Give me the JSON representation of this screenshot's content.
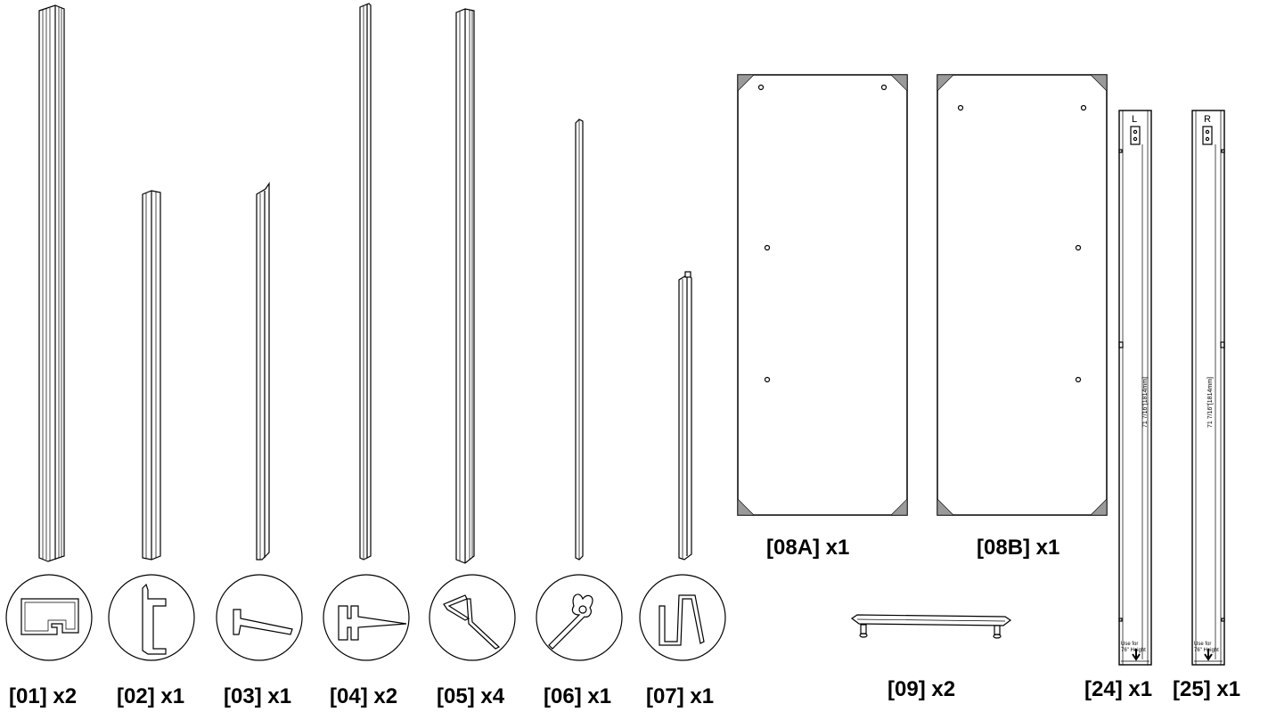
{
  "parts": [
    {
      "id": "01",
      "label": "[01] x2",
      "icon": "rectangular-profile-icon"
    },
    {
      "id": "02",
      "label": "[02] x1",
      "icon": "c-channel-profile-icon"
    },
    {
      "id": "03",
      "label": "[03] x1",
      "icon": "angled-seal-profile-icon"
    },
    {
      "id": "04",
      "label": "[04] x2",
      "icon": "h-seal-profile-icon"
    },
    {
      "id": "05",
      "label": "[05] x4",
      "icon": "z-seal-profile-icon"
    },
    {
      "id": "06",
      "label": "[06] x1",
      "icon": "clip-seal-profile-icon"
    },
    {
      "id": "07",
      "label": "[07] x1",
      "icon": "hook-profile-icon"
    }
  ],
  "panels": [
    {
      "id": "08A",
      "label": "[08A] x1"
    },
    {
      "id": "08B",
      "label": "[08B] x1"
    }
  ],
  "handle": {
    "id": "09",
    "label": "[09] x2"
  },
  "jambs": [
    {
      "id": "24",
      "label": "[24] x1",
      "side": "L",
      "dimension": "71 7/16\"[1814mm]",
      "note_line1": "Use for",
      "note_line2": "76\" Height"
    },
    {
      "id": "25",
      "label": "[25] x1",
      "side": "R",
      "dimension": "71 7/16\"[1814mm]",
      "note_line1": "Use for",
      "note_line2": "76\" Height"
    }
  ],
  "colors": {
    "line": "#000000",
    "corner_bracket": "#9a9a9a",
    "background": "#ffffff"
  }
}
